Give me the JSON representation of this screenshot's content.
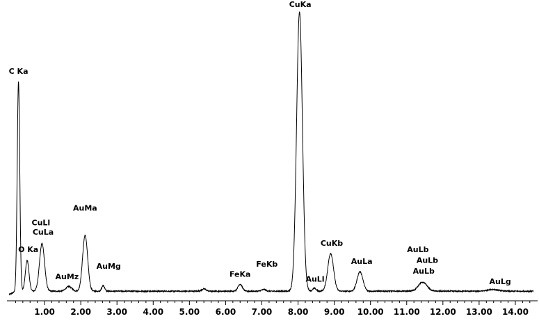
{
  "chart_data": {
    "type": "line",
    "title": "",
    "xlabel": "",
    "ylabel": "",
    "xlim": [
      0.0,
      14.5
    ],
    "ylim": [
      0,
      1.0
    ],
    "grid": false,
    "legend": "none",
    "colors": {
      "line": "#000000",
      "text": "#000000",
      "background": "#ffffff"
    },
    "x_ticks": [
      1,
      2,
      3,
      4,
      5,
      6,
      7,
      8,
      9,
      10,
      11,
      12,
      13,
      14
    ],
    "x_tick_labels": [
      "1.00",
      "2.00",
      "3.00",
      "4.00",
      "5.00",
      "6.00",
      "7.00",
      "8.00",
      "9.00",
      "10.00",
      "11.00",
      "12.00",
      "13.00",
      "14.00"
    ],
    "baseline": 0.012,
    "peaks": [
      {
        "x": 0.28,
        "height": 0.75,
        "width": 0.035
      },
      {
        "x": 0.52,
        "height": 0.11,
        "width": 0.05
      },
      {
        "x": 0.93,
        "height": 0.17,
        "width": 0.07
      },
      {
        "x": 1.67,
        "height": 0.017,
        "width": 0.08
      },
      {
        "x": 2.12,
        "height": 0.2,
        "width": 0.07
      },
      {
        "x": 2.62,
        "height": 0.02,
        "width": 0.04
      },
      {
        "x": 5.4,
        "height": 0.008,
        "width": 0.06
      },
      {
        "x": 6.4,
        "height": 0.025,
        "width": 0.06
      },
      {
        "x": 7.05,
        "height": 0.006,
        "width": 0.06
      },
      {
        "x": 8.04,
        "height": 1.0,
        "width": 0.08
      },
      {
        "x": 8.45,
        "height": 0.01,
        "width": 0.05
      },
      {
        "x": 8.9,
        "height": 0.135,
        "width": 0.08
      },
      {
        "x": 9.71,
        "height": 0.07,
        "width": 0.08
      },
      {
        "x": 11.44,
        "height": 0.032,
        "width": 0.12
      },
      {
        "x": 13.38,
        "height": 0.006,
        "width": 0.15
      }
    ],
    "annotations": [
      {
        "text": "C Ka",
        "x": 0.28,
        "y": 0.79
      },
      {
        "text": "O Ka",
        "x": 0.55,
        "y": 0.152
      },
      {
        "text": "CuLl",
        "x": 0.9,
        "y": 0.248
      },
      {
        "text": "CuLa",
        "x": 0.96,
        "y": 0.215
      },
      {
        "text": "AuMa",
        "x": 2.12,
        "y": 0.3
      },
      {
        "text": "AuMz",
        "x": 1.62,
        "y": 0.055
      },
      {
        "text": "AuMg",
        "x": 2.77,
        "y": 0.092
      },
      {
        "text": "FeKa",
        "x": 6.4,
        "y": 0.063
      },
      {
        "text": "FeKb",
        "x": 7.14,
        "y": 0.1
      },
      {
        "text": "CuKa",
        "x": 8.06,
        "y": 1.03
      },
      {
        "text": "AuLl",
        "x": 8.47,
        "y": 0.046
      },
      {
        "text": "CuKb",
        "x": 8.93,
        "y": 0.175
      },
      {
        "text": "AuLa",
        "x": 9.76,
        "y": 0.11
      },
      {
        "text": "AuLb",
        "x": 11.31,
        "y": 0.152
      },
      {
        "text": "AuLb",
        "x": 11.57,
        "y": 0.113
      },
      {
        "text": "AuLb",
        "x": 11.47,
        "y": 0.075
      },
      {
        "text": "AuLg",
        "x": 13.58,
        "y": 0.037
      }
    ]
  }
}
